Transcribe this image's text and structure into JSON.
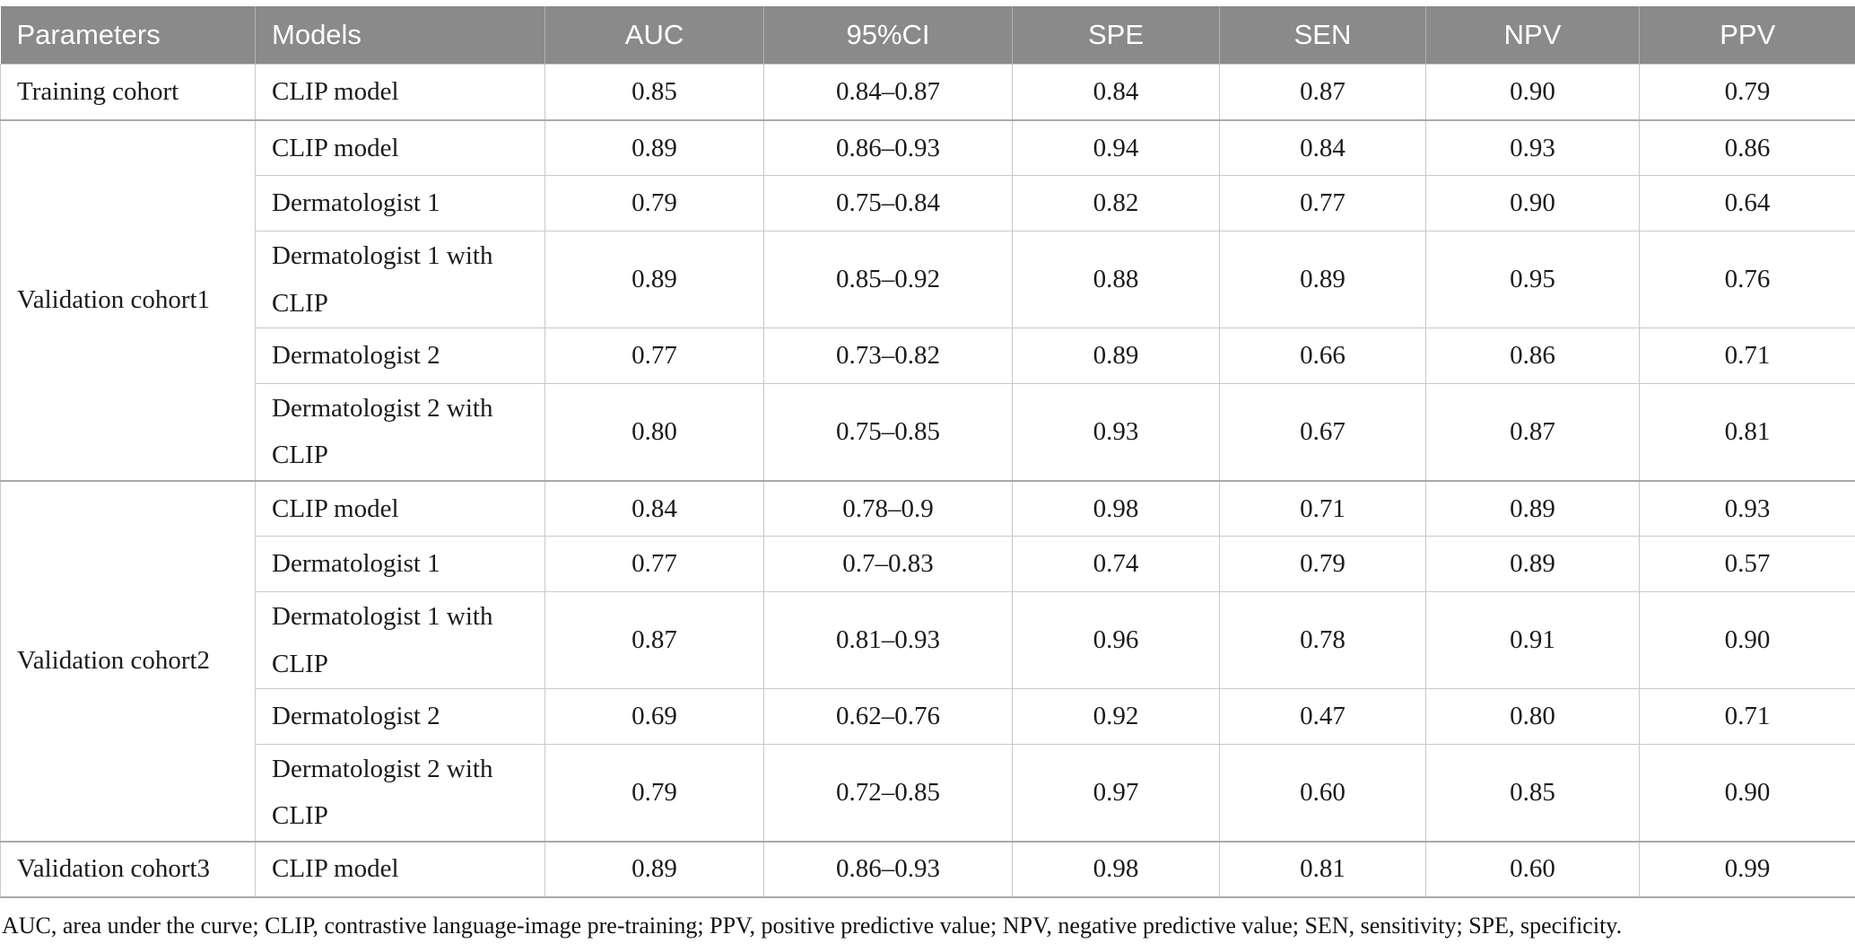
{
  "colors": {
    "header_bg": "#8a8a8a",
    "header_text": "#ffffff",
    "row_border": "#c9c9c9",
    "section_border": "#a9a9a9",
    "body_text": "#1b1b1b"
  },
  "header": {
    "columns": [
      "Parameters",
      "Models",
      "AUC",
      "95%CI",
      "SPE",
      "SEN",
      "NPV",
      "PPV"
    ]
  },
  "sections": [
    {
      "parameter": "Training cohort",
      "rows": [
        {
          "model": "CLIP model",
          "auc": "0.85",
          "ci": "0.84–0.87",
          "spe": "0.84",
          "sen": "0.87",
          "npv": "0.90",
          "ppv": "0.79"
        }
      ]
    },
    {
      "parameter": "Validation cohort1",
      "rows": [
        {
          "model": "CLIP model",
          "auc": "0.89",
          "ci": "0.86–0.93",
          "spe": "0.94",
          "sen": "0.84",
          "npv": "0.93",
          "ppv": "0.86"
        },
        {
          "model": "Dermatologist 1",
          "auc": "0.79",
          "ci": "0.75–0.84",
          "spe": "0.82",
          "sen": "0.77",
          "npv": "0.90",
          "ppv": "0.64"
        },
        {
          "model": "Dermatologist 1 with CLIP",
          "auc": "0.89",
          "ci": "0.85–0.92",
          "spe": "0.88",
          "sen": "0.89",
          "npv": "0.95",
          "ppv": "0.76"
        },
        {
          "model": "Dermatologist 2",
          "auc": "0.77",
          "ci": "0.73–0.82",
          "spe": "0.89",
          "sen": "0.66",
          "npv": "0.86",
          "ppv": "0.71"
        },
        {
          "model": "Dermatologist 2 with CLIP",
          "auc": "0.80",
          "ci": "0.75–0.85",
          "spe": "0.93",
          "sen": "0.67",
          "npv": "0.87",
          "ppv": "0.81"
        }
      ]
    },
    {
      "parameter": "Validation cohort2",
      "rows": [
        {
          "model": "CLIP model",
          "auc": "0.84",
          "ci": "0.78–0.9",
          "spe": "0.98",
          "sen": "0.71",
          "npv": "0.89",
          "ppv": "0.93"
        },
        {
          "model": "Dermatologist 1",
          "auc": "0.77",
          "ci": "0.7–0.83",
          "spe": "0.74",
          "sen": "0.79",
          "npv": "0.89",
          "ppv": "0.57"
        },
        {
          "model": "Dermatologist 1 with CLIP",
          "auc": "0.87",
          "ci": "0.81–0.93",
          "spe": "0.96",
          "sen": "0.78",
          "npv": "0.91",
          "ppv": "0.90"
        },
        {
          "model": "Dermatologist 2",
          "auc": "0.69",
          "ci": "0.62–0.76",
          "spe": "0.92",
          "sen": "0.47",
          "npv": "0.80",
          "ppv": "0.71"
        },
        {
          "model": "Dermatologist 2 with CLIP",
          "auc": "0.79",
          "ci": "0.72–0.85",
          "spe": "0.97",
          "sen": "0.60",
          "npv": "0.85",
          "ppv": "0.90"
        }
      ]
    },
    {
      "parameter": "Validation cohort3",
      "rows": [
        {
          "model": "CLIP model",
          "auc": "0.89",
          "ci": "0.86–0.93",
          "spe": "0.98",
          "sen": "0.81",
          "npv": "0.60",
          "ppv": "0.99"
        }
      ]
    }
  ],
  "footnote": "AUC, area under the curve; CLIP, contrastive language-image pre-training; PPV, positive predictive value; NPV, negative predictive value; SEN, sensitivity; SPE, specificity."
}
